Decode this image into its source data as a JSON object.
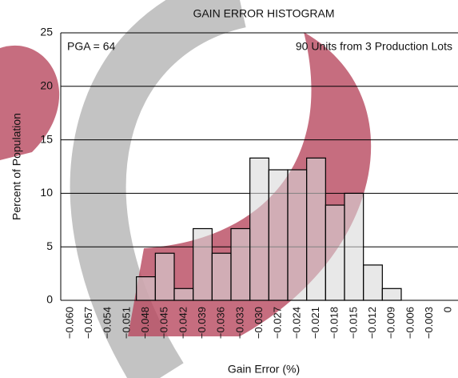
{
  "chart_data": {
    "type": "bar",
    "title": "GAIN ERROR HISTOGRAM",
    "x_label": "Gain Error (%)",
    "y_label": "Percent of Population",
    "annotations": [
      "PGA = 64",
      "90 Units from 3 Production Lots"
    ],
    "categories": [
      "−0.060",
      "−0.057",
      "−0.054",
      "−0.051",
      "−0.048",
      "−0.045",
      "−0.042",
      "−0.039",
      "−0.036",
      "−0.033",
      "−0.030",
      "−0.027",
      "−0.024",
      "−0.021",
      "−0.018",
      "−0.015",
      "−0.012",
      "−0.009",
      "−0.006",
      "−0.003",
      "0"
    ],
    "values": [
      0,
      0,
      0,
      0,
      2.2,
      4.4,
      1.1,
      6.7,
      4.4,
      6.7,
      13.3,
      12.2,
      12.2,
      13.3,
      8.9,
      10,
      3.3,
      1.1,
      0,
      0,
      0
    ],
    "color": "#d9d9d9",
    "ylim": [
      0,
      25
    ],
    "yticks": [
      0,
      5,
      10,
      15,
      20,
      25
    ],
    "grid": true
  }
}
